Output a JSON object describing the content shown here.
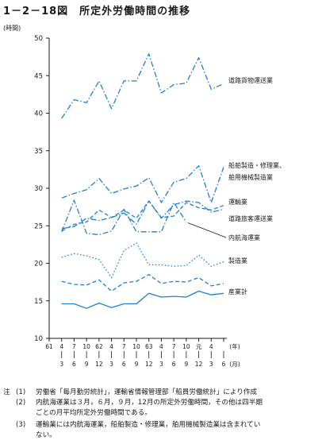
{
  "page": {
    "title": "1－2－18図　所定外労働時間の推移",
    "unit_label": "(時間)"
  },
  "chart_data": {
    "type": "line",
    "title": "1－2－18図　所定外労働時間の推移",
    "ylabel": "(時間)",
    "ylim": [
      10,
      50
    ],
    "yticks": [
      10,
      15,
      20,
      25,
      30,
      35,
      40,
      45,
      50
    ],
    "grid": false,
    "x": [
      "61/1",
      "61/3",
      "61/6",
      "61/9",
      "61/12",
      "62/3",
      "62/6",
      "62/9",
      "62/12",
      "63/3",
      "63/6",
      "63/9",
      "63/12",
      "元/3",
      "元/6"
    ],
    "x_axis": {
      "year_label": "(年)",
      "month_label": "(月)",
      "upper_ticks": [
        "61",
        "4",
        "7",
        "10",
        "62",
        "4",
        "7",
        "10",
        "63",
        "4",
        "7",
        "10",
        "元",
        "4"
      ],
      "lower_ticks": [
        "3",
        "6",
        "9",
        "12",
        "3",
        "6",
        "9",
        "12",
        "3",
        "6",
        "9",
        "12",
        "3",
        "6"
      ]
    },
    "series": [
      {
        "name": "道路貨物運送業",
        "style": "dash-dot",
        "values": [
          null,
          39.3,
          41.8,
          41.4,
          44.3,
          40.6,
          44.3,
          44.3,
          47.9,
          42.7,
          43.8,
          44.0,
          47.4,
          43.2,
          43.9
        ]
      },
      {
        "name": "船舶製造・修理業、舶用機械製造業",
        "style": "dash-dot",
        "values": [
          null,
          28.7,
          29.3,
          29.8,
          31.3,
          29.3,
          29.9,
          30.3,
          31.4,
          28.1,
          30.8,
          31.3,
          33.0,
          28.1,
          32.8
        ]
      },
      {
        "name": "運輸業",
        "style": "dashed",
        "values": [
          null,
          24.3,
          25.2,
          25.5,
          27.1,
          26.1,
          27.1,
          26.0,
          28.3,
          26.1,
          26.3,
          28.1,
          27.4,
          27.1,
          27.7
        ]
      },
      {
        "name": "道路旅客運送業",
        "style": "dash-dot",
        "values": [
          null,
          24.6,
          24.9,
          26.0,
          25.7,
          26.1,
          26.7,
          25.2,
          28.3,
          26.0,
          27.8,
          28.3,
          28.1,
          26.8,
          27.2
        ]
      },
      {
        "name": "内航海運業",
        "style": "dash-dot",
        "values": [
          null,
          24.2,
          28.4,
          24.0,
          23.8,
          24.3,
          27.2,
          24.2,
          24.2,
          24.2,
          28.1,
          25.5,
          null,
          null,
          null
        ]
      },
      {
        "name": "製造業",
        "style": "dotted",
        "values": [
          null,
          20.8,
          21.3,
          21.0,
          20.5,
          18.1,
          21.7,
          22.7,
          19.8,
          19.8,
          19.6,
          19.7,
          21.1,
          19.6,
          20.2
        ]
      },
      {
        "name": "産業計",
        "style": "dashed",
        "values": [
          null,
          17.6,
          17.2,
          17.1,
          17.8,
          16.3,
          17.4,
          17.6,
          18.5,
          17.3,
          17.6,
          17.5,
          18.1,
          17.0,
          17.3
        ]
      },
      {
        "name": "",
        "style": "solid",
        "values": [
          null,
          14.6,
          14.6,
          14.0,
          14.7,
          14.1,
          14.6,
          14.6,
          16.0,
          15.5,
          15.6,
          15.5,
          16.3,
          15.8,
          16.0
        ]
      }
    ],
    "line_labels": [
      {
        "text": "道路貨物運送業",
        "series": 0
      },
      {
        "text": "船舶製造・修理業、",
        "series": 1
      },
      {
        "text": "舶用機械製造業",
        "series": 1
      },
      {
        "text": "運輸業",
        "series": 2
      },
      {
        "text": "道路旅客運送業",
        "series": 3
      },
      {
        "text": "内航海運業",
        "series": 4
      },
      {
        "text": "製造業",
        "series": 5
      },
      {
        "text": "産業計",
        "series": 7
      }
    ],
    "colors": {
      "line": "#1f7fd1",
      "axis": "#1a1a1a"
    }
  },
  "notes": [
    {
      "prefix": "注",
      "num": "(1)",
      "text": "労働省「毎月勤労統計」，運輸省情報管理部「船員労働統計」により作成"
    },
    {
      "prefix": "",
      "num": "(2)",
      "text": "内航海運業は３月，６月，９月，12月の所定外労働時間，その他は四半期"
    },
    {
      "prefix": "",
      "num": "",
      "text": "ごとの月平均所定外労働時間である。"
    },
    {
      "prefix": "",
      "num": "(3)",
      "text": "運輸業には内航海運業，船舶製造・修理業，舶用機械製造業は含まれてい"
    },
    {
      "prefix": "",
      "num": "",
      "text": "ない。"
    }
  ]
}
